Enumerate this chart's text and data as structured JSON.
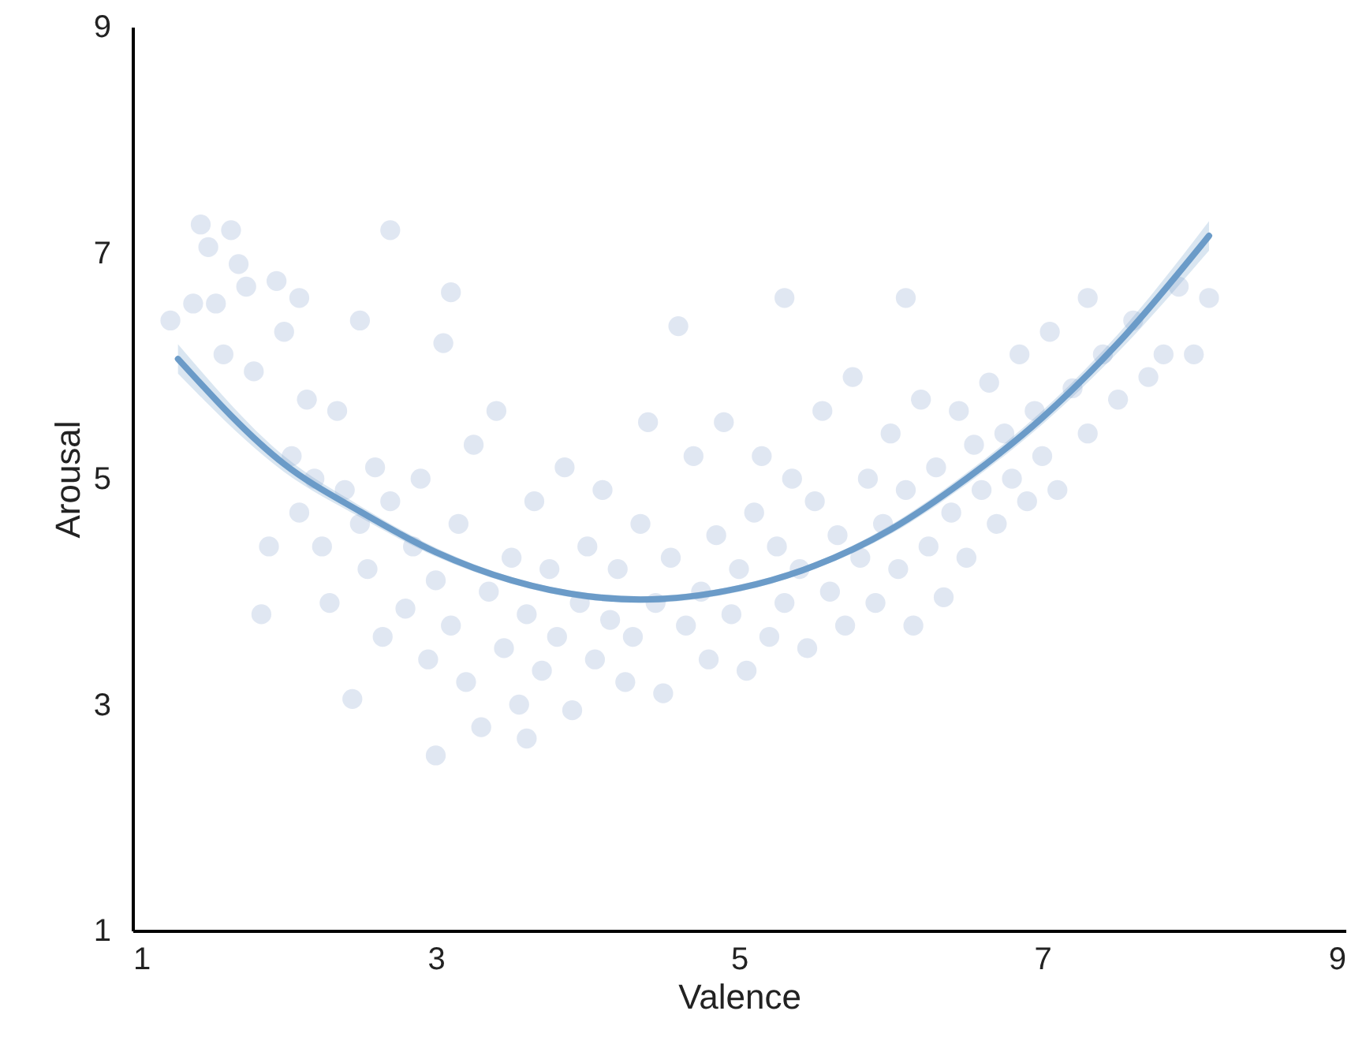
{
  "chart_data": {
    "type": "scatter",
    "xlabel": "Valence",
    "ylabel": "Arousal",
    "xlim": [
      1,
      9
    ],
    "ylim": [
      1,
      9
    ],
    "xticks": [
      1,
      3,
      5,
      7,
      9
    ],
    "yticks": [
      1,
      3,
      5,
      7,
      9
    ],
    "grid": false,
    "series": [
      {
        "marker": "circle",
        "color": "#8fa9d0",
        "x": [
          1.25,
          1.4,
          1.45,
          1.5,
          1.55,
          1.6,
          1.65,
          1.7,
          1.75,
          1.8,
          1.85,
          1.9,
          1.95,
          2.0,
          2.05,
          2.1,
          2.1,
          2.15,
          2.2,
          2.25,
          2.3,
          2.35,
          2.4,
          2.45,
          2.5,
          2.5,
          2.55,
          2.6,
          2.65,
          2.7,
          2.7,
          2.8,
          2.85,
          2.9,
          2.95,
          3.0,
          3.0,
          3.05,
          3.1,
          3.1,
          3.15,
          3.2,
          3.25,
          3.3,
          3.35,
          3.4,
          3.45,
          3.5,
          3.55,
          3.6,
          3.6,
          3.65,
          3.7,
          3.75,
          3.8,
          3.85,
          3.9,
          3.95,
          4.0,
          4.05,
          4.1,
          4.15,
          4.2,
          4.25,
          4.3,
          4.35,
          4.4,
          4.45,
          4.5,
          4.55,
          4.6,
          4.65,
          4.7,
          4.75,
          4.8,
          4.85,
          4.9,
          4.95,
          5.0,
          5.05,
          5.1,
          5.15,
          5.2,
          5.25,
          5.3,
          5.3,
          5.35,
          5.4,
          5.45,
          5.5,
          5.55,
          5.6,
          5.65,
          5.7,
          5.75,
          5.8,
          5.85,
          5.9,
          5.95,
          6.0,
          6.05,
          6.1,
          6.1,
          6.15,
          6.2,
          6.25,
          6.3,
          6.35,
          6.4,
          6.45,
          6.5,
          6.55,
          6.6,
          6.65,
          6.7,
          6.75,
          6.8,
          6.85,
          6.9,
          6.95,
          7.0,
          7.05,
          7.1,
          7.2,
          7.3,
          7.3,
          7.4,
          7.5,
          7.6,
          7.7,
          7.8,
          7.9,
          8.1,
          8.0
        ],
        "values": [
          6.4,
          6.55,
          7.25,
          7.05,
          6.55,
          6.1,
          7.2,
          6.9,
          6.7,
          5.95,
          3.8,
          4.4,
          6.75,
          6.3,
          5.2,
          4.7,
          6.6,
          5.7,
          5.0,
          4.4,
          3.9,
          5.6,
          4.9,
          3.05,
          6.4,
          4.6,
          4.2,
          5.1,
          3.6,
          7.2,
          4.8,
          3.85,
          4.4,
          5.0,
          3.4,
          2.55,
          4.1,
          6.2,
          6.65,
          3.7,
          4.6,
          3.2,
          5.3,
          2.8,
          4.0,
          5.6,
          3.5,
          4.3,
          3.0,
          2.7,
          3.8,
          4.8,
          3.3,
          4.2,
          3.6,
          5.1,
          2.95,
          3.9,
          4.4,
          3.4,
          4.9,
          3.75,
          4.2,
          3.2,
          3.6,
          4.6,
          5.5,
          3.9,
          3.1,
          4.3,
          6.35,
          3.7,
          5.2,
          4.0,
          3.4,
          4.5,
          5.5,
          3.8,
          4.2,
          3.3,
          4.7,
          5.2,
          3.6,
          4.4,
          6.6,
          3.9,
          5.0,
          4.2,
          3.5,
          4.8,
          5.6,
          4.0,
          4.5,
          3.7,
          5.9,
          4.3,
          5.0,
          3.9,
          4.6,
          5.4,
          4.2,
          6.6,
          4.9,
          3.7,
          5.7,
          4.4,
          5.1,
          3.95,
          4.7,
          5.6,
          4.3,
          5.3,
          4.9,
          5.85,
          4.6,
          5.4,
          5.0,
          6.1,
          4.8,
          5.6,
          5.2,
          6.3,
          4.9,
          5.8,
          6.6,
          5.4,
          6.1,
          5.7,
          6.4,
          5.9,
          6.1,
          6.7,
          6.6,
          6.1
        ]
      },
      {
        "type": "line",
        "color": "#6b9bc8",
        "x": [
          1.3,
          2,
          2.5,
          3,
          3.5,
          4,
          4.35,
          5,
          5.5,
          6,
          6.5,
          7,
          7.5,
          8.1
        ],
        "values": [
          6.06,
          5.13,
          4.71,
          4.35,
          4.1,
          3.96,
          3.93,
          4.03,
          4.23,
          4.55,
          5.0,
          5.54,
          6.2,
          7.15
        ],
        "lower": [
          5.93,
          5.06,
          4.66,
          4.31,
          4.07,
          3.93,
          3.9,
          4.0,
          4.2,
          4.51,
          4.95,
          5.48,
          6.12,
          7.02
        ],
        "upper": [
          6.19,
          5.2,
          4.76,
          4.39,
          4.13,
          3.99,
          3.96,
          4.06,
          4.26,
          4.59,
          5.05,
          5.6,
          6.28,
          7.28
        ]
      }
    ]
  }
}
